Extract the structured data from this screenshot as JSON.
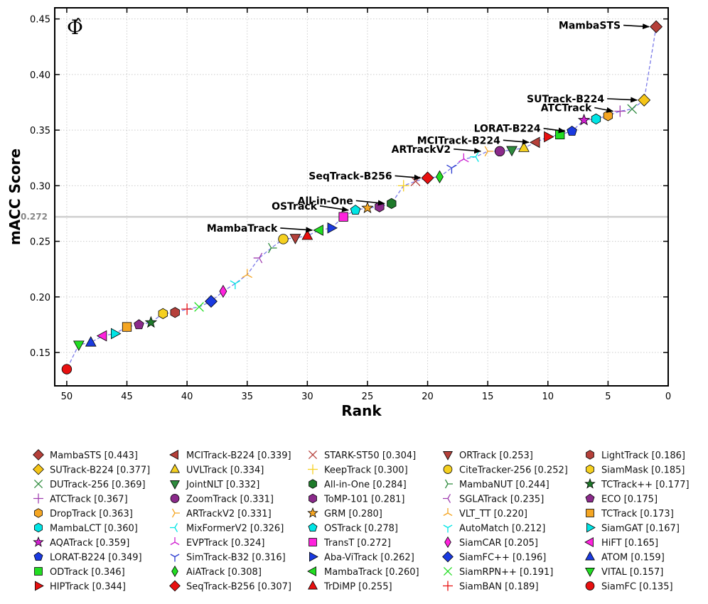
{
  "chart_data": {
    "type": "scatter",
    "corner_label": "Φ̂",
    "xlabel": "Rank",
    "ylabel": "mACC Score",
    "xlim": [
      51,
      0
    ],
    "ylim": [
      0.12,
      0.46
    ],
    "x_ticks": [
      "50",
      "45",
      "40",
      "35",
      "30",
      "25",
      "20",
      "15",
      "10",
      "5",
      "0"
    ],
    "y_ticks": [
      "0.15",
      "0.20",
      "0.25",
      "0.30",
      "0.35",
      "0.40",
      "0.45"
    ],
    "grid": true,
    "reference_line": {
      "y": 0.272,
      "label": "0.272"
    },
    "legend_placement": "bottom",
    "series": [
      {
        "name": "MambaSTS",
        "x": 1,
        "y": 0.443,
        "marker": "diamond",
        "color": "#b5403a",
        "legend": "MambaSTS [0.443]"
      },
      {
        "name": "SUTrack-B224",
        "x": 2,
        "y": 0.377,
        "marker": "diamond",
        "color": "#f5c518",
        "legend": "SUTrack-B224 [0.377]"
      },
      {
        "name": "DUTrack-256",
        "x": 3,
        "y": 0.369,
        "marker": "x",
        "color": "#2e8b3e",
        "legend": "DUTrack-256 [0.369]"
      },
      {
        "name": "ATCTrack",
        "x": 4,
        "y": 0.367,
        "marker": "plus",
        "color": "#a040b0",
        "legend": "ATCTrack [0.367]"
      },
      {
        "name": "DropTrack",
        "x": 5,
        "y": 0.363,
        "marker": "hexagon",
        "color": "#f5a623",
        "legend": "DropTrack [0.363]"
      },
      {
        "name": "MambaLCT",
        "x": 6,
        "y": 0.36,
        "marker": "hexagon",
        "color": "#00e5e5",
        "legend": "MambaLCT [0.360]"
      },
      {
        "name": "AQATrack",
        "x": 7,
        "y": 0.359,
        "marker": "star",
        "color": "#d020d0",
        "legend": "AQATrack [0.359]"
      },
      {
        "name": "LORAT-B224",
        "x": 8,
        "y": 0.349,
        "marker": "pentagon",
        "color": "#1a3ae0",
        "legend": "LORAT-B224 [0.349]"
      },
      {
        "name": "ODTrack",
        "x": 9,
        "y": 0.346,
        "marker": "square",
        "color": "#22dd22",
        "legend": "ODTrack [0.346]"
      },
      {
        "name": "HIPTrack",
        "x": 10,
        "y": 0.344,
        "marker": "triangle-right",
        "color": "#e81010",
        "legend": "HIPTrack [0.344]"
      },
      {
        "name": "MCITrack-B224",
        "x": 11,
        "y": 0.339,
        "marker": "triangle-left",
        "color": "#b5403a",
        "legend": "MCITrack-B224 [0.339]"
      },
      {
        "name": "UVLTrack",
        "x": 12,
        "y": 0.334,
        "marker": "triangle-up",
        "color": "#f5d020",
        "legend": "UVLTrack [0.334]"
      },
      {
        "name": "JointNLT",
        "x": 13,
        "y": 0.332,
        "marker": "triangle-down",
        "color": "#2e8b3e",
        "legend": "JointNLT [0.332]"
      },
      {
        "name": "ZoomTrack",
        "x": 14,
        "y": 0.331,
        "marker": "circle",
        "color": "#8b2a8b",
        "legend": "ZoomTrack [0.331]"
      },
      {
        "name": "ARTrackV2",
        "x": 15,
        "y": 0.331,
        "marker": "tri-right",
        "color": "#f5a623",
        "legend": "ARTrackV2 [0.331]"
      },
      {
        "name": "MixFormerV2",
        "x": 16,
        "y": 0.326,
        "marker": "tri-left",
        "color": "#00e5e5",
        "legend": "MixFormerV2 [0.326]"
      },
      {
        "name": "EVPTrack",
        "x": 17,
        "y": 0.324,
        "marker": "tri-up",
        "color": "#d020d0",
        "legend": "EVPTrack [0.324]"
      },
      {
        "name": "SimTrack-B32",
        "x": 18,
        "y": 0.316,
        "marker": "tri-down",
        "color": "#2a3ad0",
        "legend": "SimTrack-B32 [0.316]"
      },
      {
        "name": "AiATrack",
        "x": 19,
        "y": 0.308,
        "marker": "thin-diamond",
        "color": "#22dd22",
        "legend": "AiATrack [0.308]"
      },
      {
        "name": "SeqTrack-B256",
        "x": 20,
        "y": 0.307,
        "marker": "diamond",
        "color": "#e81010",
        "legend": "SeqTrack-B256 [0.307]"
      },
      {
        "name": "STARK-ST50",
        "x": 21,
        "y": 0.304,
        "marker": "x",
        "color": "#b5403a",
        "legend": "STARK-ST50 [0.304]"
      },
      {
        "name": "KeepTrack",
        "x": 22,
        "y": 0.3,
        "marker": "plus",
        "color": "#f5d020",
        "legend": "KeepTrack [0.300]"
      },
      {
        "name": "All-in-One",
        "x": 23,
        "y": 0.284,
        "marker": "hexagon",
        "color": "#1e7a2a",
        "legend": "All-in-One [0.284]"
      },
      {
        "name": "ToMP-101",
        "x": 24,
        "y": 0.281,
        "marker": "hexagon",
        "color": "#8b2a8b",
        "legend": "ToMP-101 [0.281]"
      },
      {
        "name": "GRM",
        "x": 25,
        "y": 0.28,
        "marker": "star",
        "color": "#f5a623",
        "legend": "GRM [0.280]"
      },
      {
        "name": "OSTrack",
        "x": 26,
        "y": 0.278,
        "marker": "pentagon",
        "color": "#00e5e5",
        "legend": "OSTrack [0.278]"
      },
      {
        "name": "TransT",
        "x": 27,
        "y": 0.272,
        "marker": "square",
        "color": "#ff22dd",
        "legend": "TransT [0.272]"
      },
      {
        "name": "Aba-ViTrack",
        "x": 28,
        "y": 0.262,
        "marker": "triangle-right",
        "color": "#1a3ae0",
        "legend": "Aba-ViTrack [0.262]"
      },
      {
        "name": "MambaTrack",
        "x": 29,
        "y": 0.26,
        "marker": "triangle-left",
        "color": "#22dd22",
        "legend": "MambaTrack [0.260]"
      },
      {
        "name": "TrDiMP",
        "x": 30,
        "y": 0.255,
        "marker": "triangle-up",
        "color": "#e81010",
        "legend": "TrDiMP [0.255]"
      },
      {
        "name": "ORTrack",
        "x": 31,
        "y": 0.253,
        "marker": "triangle-down",
        "color": "#b5403a",
        "legend": "ORTrack [0.253]"
      },
      {
        "name": "CiteTracker-256",
        "x": 32,
        "y": 0.252,
        "marker": "circle",
        "color": "#f5d020",
        "legend": "CiteTracker-256 [0.252]"
      },
      {
        "name": "MambaNUT",
        "x": 33,
        "y": 0.244,
        "marker": "tri-right",
        "color": "#2e8b3e",
        "legend": "MambaNUT [0.244]"
      },
      {
        "name": "SGLATrack",
        "x": 34,
        "y": 0.235,
        "marker": "tri-left",
        "color": "#a040b0",
        "legend": "SGLATrack [0.235]"
      },
      {
        "name": "VLT_TT",
        "x": 35,
        "y": 0.22,
        "marker": "tri-up",
        "color": "#f5a623",
        "legend": "VLT_TT [0.220]"
      },
      {
        "name": "AutoMatch",
        "x": 36,
        "y": 0.212,
        "marker": "tri-down",
        "color": "#00e5e5",
        "legend": "AutoMatch [0.212]"
      },
      {
        "name": "SiamCAR",
        "x": 37,
        "y": 0.205,
        "marker": "thin-diamond",
        "color": "#ff22dd",
        "legend": "SiamCAR [0.205]"
      },
      {
        "name": "SiamFC++",
        "x": 38,
        "y": 0.196,
        "marker": "diamond",
        "color": "#1a3ae0",
        "legend": "SiamFC++ [0.196]"
      },
      {
        "name": "SiamRPN++",
        "x": 39,
        "y": 0.191,
        "marker": "x",
        "color": "#22dd22",
        "legend": "SiamRPN++ [0.191]"
      },
      {
        "name": "SiamBAN",
        "x": 40,
        "y": 0.189,
        "marker": "plus",
        "color": "#e81010",
        "legend": "SiamBAN [0.189]"
      },
      {
        "name": "LightTrack",
        "x": 41,
        "y": 0.186,
        "marker": "hexagon",
        "color": "#b5403a",
        "legend": "LightTrack [0.186]"
      },
      {
        "name": "SiamMask",
        "x": 42,
        "y": 0.185,
        "marker": "hexagon",
        "color": "#f5d020",
        "legend": "SiamMask [0.185]"
      },
      {
        "name": "TCTrack++",
        "x": 43,
        "y": 0.177,
        "marker": "star",
        "color": "#1e7a2a",
        "legend": "TCTrack++ [0.177]"
      },
      {
        "name": "ECO",
        "x": 44,
        "y": 0.175,
        "marker": "pentagon",
        "color": "#8b2a8b",
        "legend": "ECO [0.175]"
      },
      {
        "name": "TCTrack",
        "x": 45,
        "y": 0.173,
        "marker": "square",
        "color": "#f5a623",
        "legend": "TCTrack [0.173]"
      },
      {
        "name": "SiamGAT",
        "x": 46,
        "y": 0.167,
        "marker": "triangle-right",
        "color": "#00e5e5",
        "legend": "SiamGAT [0.167]"
      },
      {
        "name": "HiFT",
        "x": 47,
        "y": 0.165,
        "marker": "triangle-left",
        "color": "#ff22dd",
        "legend": "HiFT [0.165]"
      },
      {
        "name": "ATOM",
        "x": 48,
        "y": 0.159,
        "marker": "triangle-up",
        "color": "#1a3ae0",
        "legend": "ATOM [0.159]"
      },
      {
        "name": "VITAL",
        "x": 49,
        "y": 0.157,
        "marker": "triangle-down",
        "color": "#22dd22",
        "legend": "VITAL [0.157]"
      },
      {
        "name": "SiamFC",
        "x": 50,
        "y": 0.135,
        "marker": "circle",
        "color": "#e81010",
        "legend": "SiamFC [0.135]"
      }
    ],
    "annotations": [
      {
        "text": "MambaSTS",
        "target": "MambaSTS"
      },
      {
        "text": "SUTrack-B224",
        "target": "SUTrack-B224"
      },
      {
        "text": "ATCTrack",
        "target": "ATCTrack"
      },
      {
        "text": "LORAT-B224",
        "target": "LORAT-B224"
      },
      {
        "text": "MCITrack-B224",
        "target": "MCITrack-B224"
      },
      {
        "text": "ARTrackV2",
        "target": "ARTrackV2"
      },
      {
        "text": "SeqTrack-B256",
        "target": "SeqTrack-B256"
      },
      {
        "text": "All-in-One",
        "target": "All-in-One"
      },
      {
        "text": "OSTrack",
        "target": "OSTrack"
      },
      {
        "text": "MambaTrack",
        "target": "MambaTrack"
      }
    ],
    "connector_color": "#7a7ae8"
  }
}
